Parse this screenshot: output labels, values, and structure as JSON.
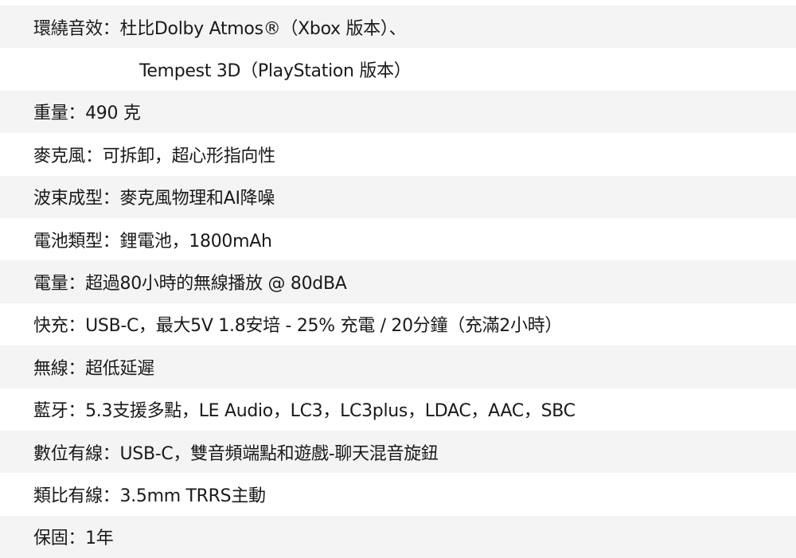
{
  "specs": [
    {
      "text": "環繞音效：杜比Dolby Atmos®（Xbox 版本）、",
      "continuation": false
    },
    {
      "text": "Tempest 3D（PlayStation 版本）",
      "continuation": true
    },
    {
      "text": "重量：490 克",
      "continuation": false
    },
    {
      "text": "麥克風：可拆卸，超心形指向性",
      "continuation": false
    },
    {
      "text": "波束成型：麥克風物理和AI降噪",
      "continuation": false
    },
    {
      "text": "電池類型：鋰電池，1800mAh",
      "continuation": false
    },
    {
      "text": "電量：超過80小時的無線播放 @ 80dBA",
      "continuation": false
    },
    {
      "text": "快充：USB-C，最大5V 1.8安培 - 25% 充電 / 20分鐘（充滿2小時）",
      "continuation": false
    },
    {
      "text": "無線：超低延遲",
      "continuation": false
    },
    {
      "text": "藍牙：5.3支援多點，LE Audio，LC3，LC3plus，LDAC，AAC，SBC",
      "continuation": false
    },
    {
      "text": "數位有線：USB-C，雙音頻端點和遊戲-聊天混音旋鈕",
      "continuation": false
    },
    {
      "text": "類比有線：3.5mm TRRS主動",
      "continuation": false
    },
    {
      "text": "保固：1年",
      "continuation": false
    }
  ]
}
